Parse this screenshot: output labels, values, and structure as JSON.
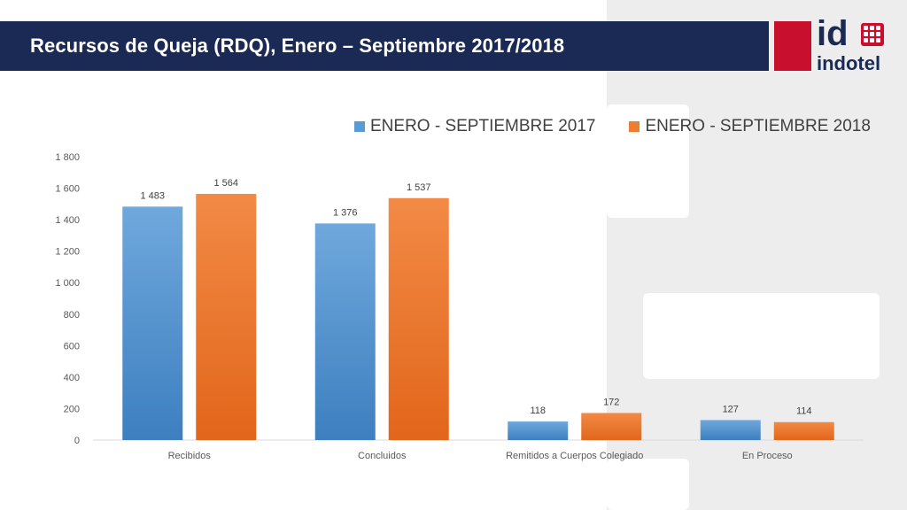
{
  "header": {
    "title": "Recursos de Queja (RDQ), Enero – Septiembre 2017/2018"
  },
  "logo": {
    "mark": "id",
    "name": "indotel"
  },
  "colors": {
    "header": "#1b2a55",
    "accent_red": "#c8102e",
    "series_2017": "#5b9bd5",
    "series_2018": "#ed7d31"
  },
  "chart_data": {
    "type": "bar",
    "title": "",
    "xlabel": "",
    "ylabel": "",
    "categories": [
      "Recibidos",
      "Concluidos",
      "Remitidos a Cuerpos Colegiado",
      "En Proceso"
    ],
    "series": [
      {
        "name": "ENERO - SEPTIEMBRE 2017",
        "values": [
          1483,
          1376,
          118,
          127
        ],
        "labels": [
          "1 483",
          "1 376",
          "118",
          "127"
        ]
      },
      {
        "name": "ENERO - SEPTIEMBRE 2018",
        "values": [
          1564,
          1537,
          172,
          114
        ],
        "labels": [
          "1 564",
          "1 537",
          "172",
          "114"
        ]
      }
    ],
    "ylim": [
      0,
      1800
    ],
    "yticks": [
      0,
      200,
      400,
      600,
      800,
      1000,
      1200,
      1400,
      1600,
      1800
    ],
    "ytick_labels": [
      "0",
      "200",
      "400",
      "600",
      "800",
      "1 000",
      "1 200",
      "1 400",
      "1 600",
      "1 800"
    ],
    "grid": false,
    "legend_position": "top"
  }
}
